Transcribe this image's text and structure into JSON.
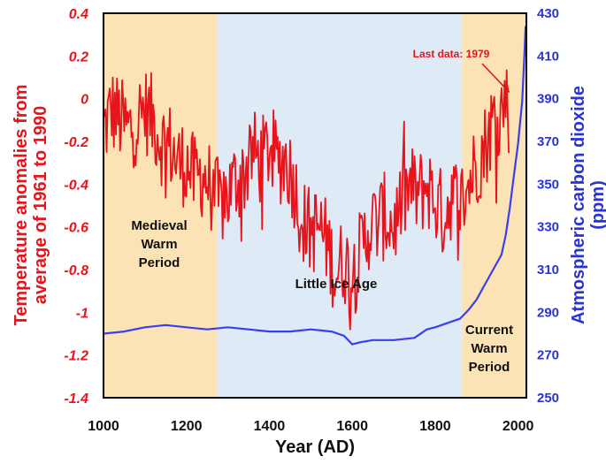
{
  "chart_data": {
    "type": "line",
    "xlabel": "Year (AD)",
    "ylabel_left": [
      "Temperature anomalies from",
      "average of 1961 to 1990"
    ],
    "ylabel_right": [
      "Atmospheric carbon dioxide",
      "(ppm)"
    ],
    "xlim": [
      1000,
      2020
    ],
    "ylim_left": [
      -1.4,
      0.4
    ],
    "ylim_right": [
      250,
      430
    ],
    "x_ticks": [
      "1000",
      "1200",
      "1400",
      "1600",
      "1800",
      "2000"
    ],
    "y_left_ticks": [
      "0.4",
      "0.2",
      "0",
      "-0.2",
      "-0.4",
      "-0.6",
      "-0.8",
      "-1",
      "-1.2",
      "-1.4"
    ],
    "y_right_ticks": [
      "430",
      "410",
      "390",
      "370",
      "350",
      "330",
      "310",
      "290",
      "270",
      "250"
    ],
    "periods": [
      {
        "name": "Medieval Warm Period",
        "lines": [
          "Medieval",
          "Warm",
          "Period"
        ],
        "start": 1000,
        "end": 1275,
        "color": "#fbe3b5"
      },
      {
        "name": "Little Ice Age",
        "lines": [
          "Little Ice Age"
        ],
        "start": 1275,
        "end": 1865,
        "color": "#deeaf6"
      },
      {
        "name": "Current Warm Period",
        "lines": [
          "Current",
          "Warm",
          "Period"
        ],
        "start": 1865,
        "end": 2020,
        "color": "#fbe3b5"
      }
    ],
    "annotation": {
      "text": "Last data: 1979",
      "x": 1979,
      "y": 0.03
    },
    "series": [
      {
        "axis": "left",
        "color": "#e8141c",
        "points": [
          [
            1000,
            -0.15
          ],
          [
            1020,
            -0.05
          ],
          [
            1040,
            -0.1
          ],
          [
            1060,
            -0.15
          ],
          [
            1080,
            -0.1
          ],
          [
            1100,
            -0.05
          ],
          [
            1120,
            -0.1
          ],
          [
            1140,
            -0.2
          ],
          [
            1160,
            -0.22
          ],
          [
            1180,
            -0.3
          ],
          [
            1200,
            -0.3
          ],
          [
            1220,
            -0.38
          ],
          [
            1240,
            -0.35
          ],
          [
            1260,
            -0.42
          ],
          [
            1280,
            -0.5
          ],
          [
            1300,
            -0.45
          ],
          [
            1320,
            -0.38
          ],
          [
            1340,
            -0.35
          ],
          [
            1360,
            -0.25
          ],
          [
            1380,
            -0.3
          ],
          [
            1400,
            -0.22
          ],
          [
            1420,
            -0.3
          ],
          [
            1440,
            -0.28
          ],
          [
            1460,
            -0.4
          ],
          [
            1480,
            -0.58
          ],
          [
            1500,
            -0.62
          ],
          [
            1520,
            -0.6
          ],
          [
            1540,
            -0.68
          ],
          [
            1560,
            -0.82
          ],
          [
            1580,
            -0.75
          ],
          [
            1600,
            -0.85
          ],
          [
            1620,
            -0.72
          ],
          [
            1640,
            -0.6
          ],
          [
            1660,
            -0.58
          ],
          [
            1680,
            -0.55
          ],
          [
            1700,
            -0.6
          ],
          [
            1720,
            -0.48
          ],
          [
            1740,
            -0.42
          ],
          [
            1760,
            -0.45
          ],
          [
            1780,
            -0.4
          ],
          [
            1800,
            -0.48
          ],
          [
            1820,
            -0.55
          ],
          [
            1840,
            -0.45
          ],
          [
            1860,
            -0.5
          ],
          [
            1880,
            -0.4
          ],
          [
            1900,
            -0.3
          ],
          [
            1920,
            -0.22
          ],
          [
            1940,
            -0.1
          ],
          [
            1960,
            -0.05
          ],
          [
            1975,
            0.02
          ],
          [
            1979,
            -0.1
          ]
        ]
      },
      {
        "axis": "right",
        "color": "#3a3ef0",
        "points": [
          [
            1000,
            280
          ],
          [
            1050,
            281
          ],
          [
            1100,
            283
          ],
          [
            1150,
            284
          ],
          [
            1200,
            283
          ],
          [
            1250,
            282
          ],
          [
            1300,
            283
          ],
          [
            1350,
            282
          ],
          [
            1400,
            281
          ],
          [
            1450,
            281
          ],
          [
            1500,
            282
          ],
          [
            1550,
            281
          ],
          [
            1580,
            279
          ],
          [
            1600,
            275
          ],
          [
            1620,
            276
          ],
          [
            1650,
            277
          ],
          [
            1700,
            277
          ],
          [
            1750,
            278
          ],
          [
            1780,
            282
          ],
          [
            1800,
            283
          ],
          [
            1830,
            285
          ],
          [
            1860,
            287
          ],
          [
            1880,
            291
          ],
          [
            1900,
            296
          ],
          [
            1920,
            303
          ],
          [
            1940,
            310
          ],
          [
            1960,
            317
          ],
          [
            1970,
            326
          ],
          [
            1980,
            339
          ],
          [
            1990,
            354
          ],
          [
            2000,
            369
          ],
          [
            2010,
            389
          ],
          [
            2015,
            410
          ],
          [
            2018,
            424
          ]
        ]
      }
    ]
  }
}
